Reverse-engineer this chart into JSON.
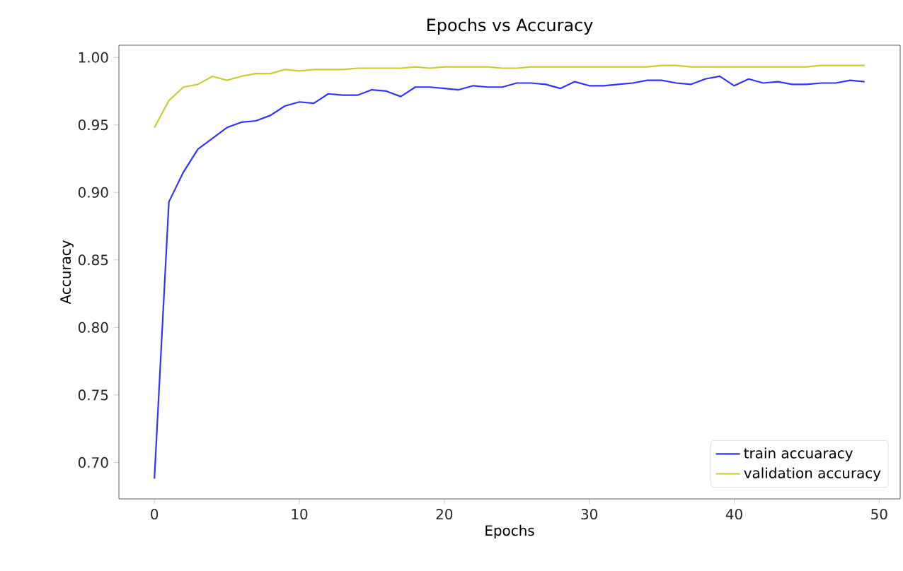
{
  "chart_data": {
    "type": "line",
    "title": "Epochs vs Accuracy",
    "xlabel": "Epochs",
    "ylabel": "Accuracy",
    "x": [
      0,
      1,
      2,
      3,
      4,
      5,
      6,
      7,
      8,
      9,
      10,
      11,
      12,
      13,
      14,
      15,
      16,
      17,
      18,
      19,
      20,
      21,
      22,
      23,
      24,
      25,
      26,
      27,
      28,
      29,
      30,
      31,
      32,
      33,
      34,
      35,
      36,
      37,
      38,
      39,
      40,
      41,
      42,
      43,
      44,
      45,
      46,
      47,
      48,
      49
    ],
    "series": [
      {
        "name": "train accuaracy",
        "color": "#3333ff",
        "values": [
          0.688,
          0.893,
          0.915,
          0.932,
          0.94,
          0.948,
          0.952,
          0.953,
          0.957,
          0.964,
          0.967,
          0.966,
          0.973,
          0.972,
          0.972,
          0.976,
          0.975,
          0.971,
          0.978,
          0.978,
          0.977,
          0.976,
          0.979,
          0.978,
          0.978,
          0.981,
          0.981,
          0.98,
          0.977,
          0.982,
          0.979,
          0.979,
          0.98,
          0.981,
          0.983,
          0.983,
          0.981,
          0.98,
          0.984,
          0.986,
          0.979,
          0.984,
          0.981,
          0.982,
          0.98,
          0.98,
          0.981,
          0.981,
          0.983,
          0.982
        ]
      },
      {
        "name": "validation accuracy",
        "color": "#cccc33",
        "values": [
          0.948,
          0.968,
          0.978,
          0.98,
          0.986,
          0.983,
          0.986,
          0.988,
          0.988,
          0.991,
          0.99,
          0.991,
          0.991,
          0.991,
          0.992,
          0.992,
          0.992,
          0.992,
          0.993,
          0.992,
          0.993,
          0.993,
          0.993,
          0.993,
          0.992,
          0.992,
          0.993,
          0.993,
          0.993,
          0.993,
          0.993,
          0.993,
          0.993,
          0.993,
          0.993,
          0.994,
          0.994,
          0.993,
          0.993,
          0.993,
          0.993,
          0.993,
          0.993,
          0.993,
          0.993,
          0.993,
          0.994,
          0.994,
          0.994,
          0.994
        ]
      }
    ],
    "xlim": [
      -2.45,
      51.45
    ],
    "ylim": [
      0.673,
      1.009
    ],
    "xticks": [
      0,
      10,
      20,
      30,
      40,
      50
    ],
    "yticks": [
      {
        "value": 0.7,
        "label": "0.70"
      },
      {
        "value": 0.75,
        "label": "0.75"
      },
      {
        "value": 0.8,
        "label": "0.80"
      },
      {
        "value": 0.85,
        "label": "0.85"
      },
      {
        "value": 0.9,
        "label": "0.90"
      },
      {
        "value": 0.95,
        "label": "0.95"
      },
      {
        "value": 1.0,
        "label": "1.00"
      }
    ],
    "legend": "bottom right",
    "grid": false,
    "line_style": "solid"
  }
}
